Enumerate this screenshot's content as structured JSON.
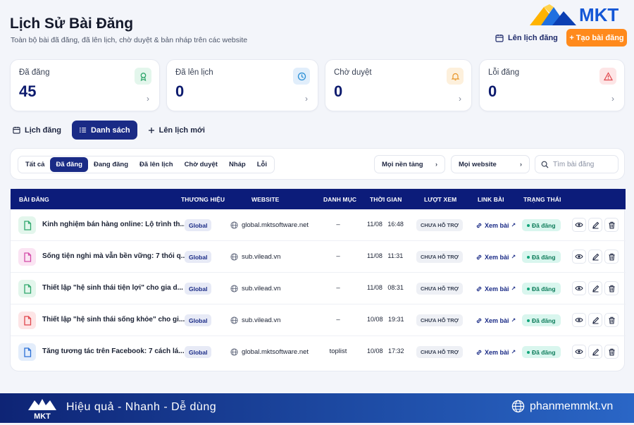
{
  "header": {
    "title": "Lịch Sử Bài Đăng",
    "subtitle": "Toàn bộ bài đã đăng, đã lên lịch, chờ duyệt & bản nháp trên các website",
    "logo_text": "MKT",
    "schedule_label": "Lên lịch đăng",
    "create_label": "+ Tạo bài đăng"
  },
  "stats": [
    {
      "label": "Đã đăng",
      "value": "45",
      "icon": "ribbon-icon",
      "color": "#2ea66b"
    },
    {
      "label": "Đã lên lịch",
      "value": "0",
      "icon": "clock-icon",
      "color": "#2a8fd6"
    },
    {
      "label": "Chờ duyệt",
      "value": "0",
      "icon": "bell-icon",
      "color": "#e8962a"
    },
    {
      "label": "Lỗi đăng",
      "value": "0",
      "icon": "warning-icon",
      "color": "#e0454b"
    }
  ],
  "view_tabs": [
    {
      "label": "Lịch đăng",
      "icon": "calendar-icon",
      "active": false
    },
    {
      "label": "Danh sách",
      "icon": "list-icon",
      "active": true
    },
    {
      "label": "Lên lịch mới",
      "icon": "plus-icon",
      "active": false
    }
  ],
  "filters": {
    "status_tabs": [
      "Tất cả",
      "Đã đăng",
      "Đang đăng",
      "Đã lên lịch",
      "Chờ duyệt",
      "Nháp",
      "Lỗi"
    ],
    "active_status": "Đã đăng",
    "platform_select": "Mọi nền tảng",
    "website_select": "Mọi website",
    "search_placeholder": "Tìm bài đăng"
  },
  "table": {
    "columns": [
      "BÀI ĐĂNG",
      "THƯƠNG HIỆU",
      "WEBSITE",
      "DANH MỤC",
      "THỜI GIAN",
      "LƯỢT XEM",
      "LINK BÀI",
      "TRẠNG THÁI"
    ],
    "rows": [
      {
        "title": "Kinh nghiệm bán hàng online: Lộ trình th...",
        "brand": "Global",
        "website": "global.mktsoftware.net",
        "category": "–",
        "time": "11/08 16:48",
        "views": "CHƯA HỖ TRỢ",
        "link": "Xem bài",
        "status": "Đã đăng",
        "icon_color": "#2ea66b",
        "icon_bg": "#e3f6ec"
      },
      {
        "title": "Sống tiện nghi mà vẫn bền vững: 7 thói q...",
        "brand": "Global",
        "website": "sub.vilead.vn",
        "category": "–",
        "time": "11/08 11:31",
        "views": "CHƯA HỖ TRỢ",
        "link": "Xem bài",
        "status": "Đã đăng",
        "icon_color": "#d24aa8",
        "icon_bg": "#fbe4f3"
      },
      {
        "title": "Thiết lập \"hệ sinh thái tiện lợi\" cho gia d...",
        "brand": "Global",
        "website": "sub.vilead.vn",
        "category": "–",
        "time": "11/08 08:31",
        "views": "CHƯA HỖ TRỢ",
        "link": "Xem bài",
        "status": "Đã đăng",
        "icon_color": "#2ea66b",
        "icon_bg": "#e3f6ec"
      },
      {
        "title": "Thiết lập \"hệ sinh thái sống khỏe\" cho gi...",
        "brand": "Global",
        "website": "sub.vilead.vn",
        "category": "–",
        "time": "10/08 19:31",
        "views": "CHƯA HỖ TRỢ",
        "link": "Xem bài",
        "status": "Đã đăng",
        "icon_color": "#e0454b",
        "icon_bg": "#fde5e6"
      },
      {
        "title": "Tăng tương tác trên Facebook: 7 cách lá...",
        "brand": "Global",
        "website": "global.mktsoftware.net",
        "category": "toplist",
        "time": "10/08 17:32",
        "views": "CHƯA HỖ TRỢ",
        "link": "Xem bài",
        "status": "Đã đăng",
        "icon_color": "#2a6fd6",
        "icon_bg": "#e3edfb"
      }
    ]
  },
  "footer": {
    "logo_text": "MKT",
    "slogan": "Hiệu quả - Nhanh - Dễ dùng",
    "website": "phanmemmkt.vn"
  }
}
